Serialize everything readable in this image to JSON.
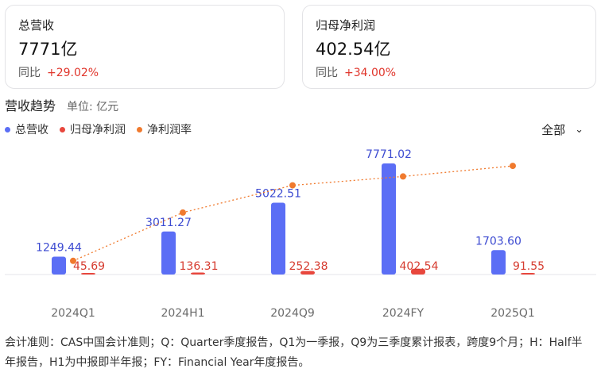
{
  "cards": [
    {
      "title": "总营收",
      "value": "7771亿",
      "yoy_label": "同比",
      "yoy_value": "+29.02%"
    },
    {
      "title": "归母净利润",
      "value": "402.54亿",
      "yoy_label": "同比",
      "yoy_value": "+34.00%"
    }
  ],
  "trend": {
    "title": "营收趋势",
    "unit": "单位: 亿元",
    "filter_label": "全部"
  },
  "legend": [
    {
      "label": "总营收",
      "color": "#5b6ef5"
    },
    {
      "label": "归母净利润",
      "color": "#e8473d"
    },
    {
      "label": "净利润率",
      "color": "#f07a2e"
    }
  ],
  "chart_data": {
    "type": "bar",
    "categories": [
      "2024Q1",
      "2024H1",
      "2024Q9",
      "2024FY",
      "2025Q1"
    ],
    "series": [
      {
        "name": "总营收",
        "values": [
          1249.44,
          3011.27,
          5022.51,
          7771.02,
          1703.6
        ],
        "labels": [
          "1249.44",
          "3011.27",
          "5022.51",
          "7771.02",
          "1703.60"
        ],
        "color": "#5b6ef5"
      },
      {
        "name": "归母净利润",
        "values": [
          45.69,
          136.31,
          252.38,
          402.54,
          91.55
        ],
        "labels": [
          "45.69",
          "136.31",
          "252.38",
          "402.54",
          "91.55"
        ],
        "color": "#e8473d"
      },
      {
        "name": "净利润率",
        "type": "line",
        "values": [
          3.66,
          4.53,
          5.02,
          5.18,
          5.37
        ],
        "color": "#f07a2e"
      }
    ]
  },
  "footnote": "会计准则：CAS中国会计准则；Q：Quarter季度报告，Q1为一季报，Q9为三季度累计报表，跨度9个月；H：Half半年报告，H1为中报即半年报；FY：Financial Year年度报告。"
}
